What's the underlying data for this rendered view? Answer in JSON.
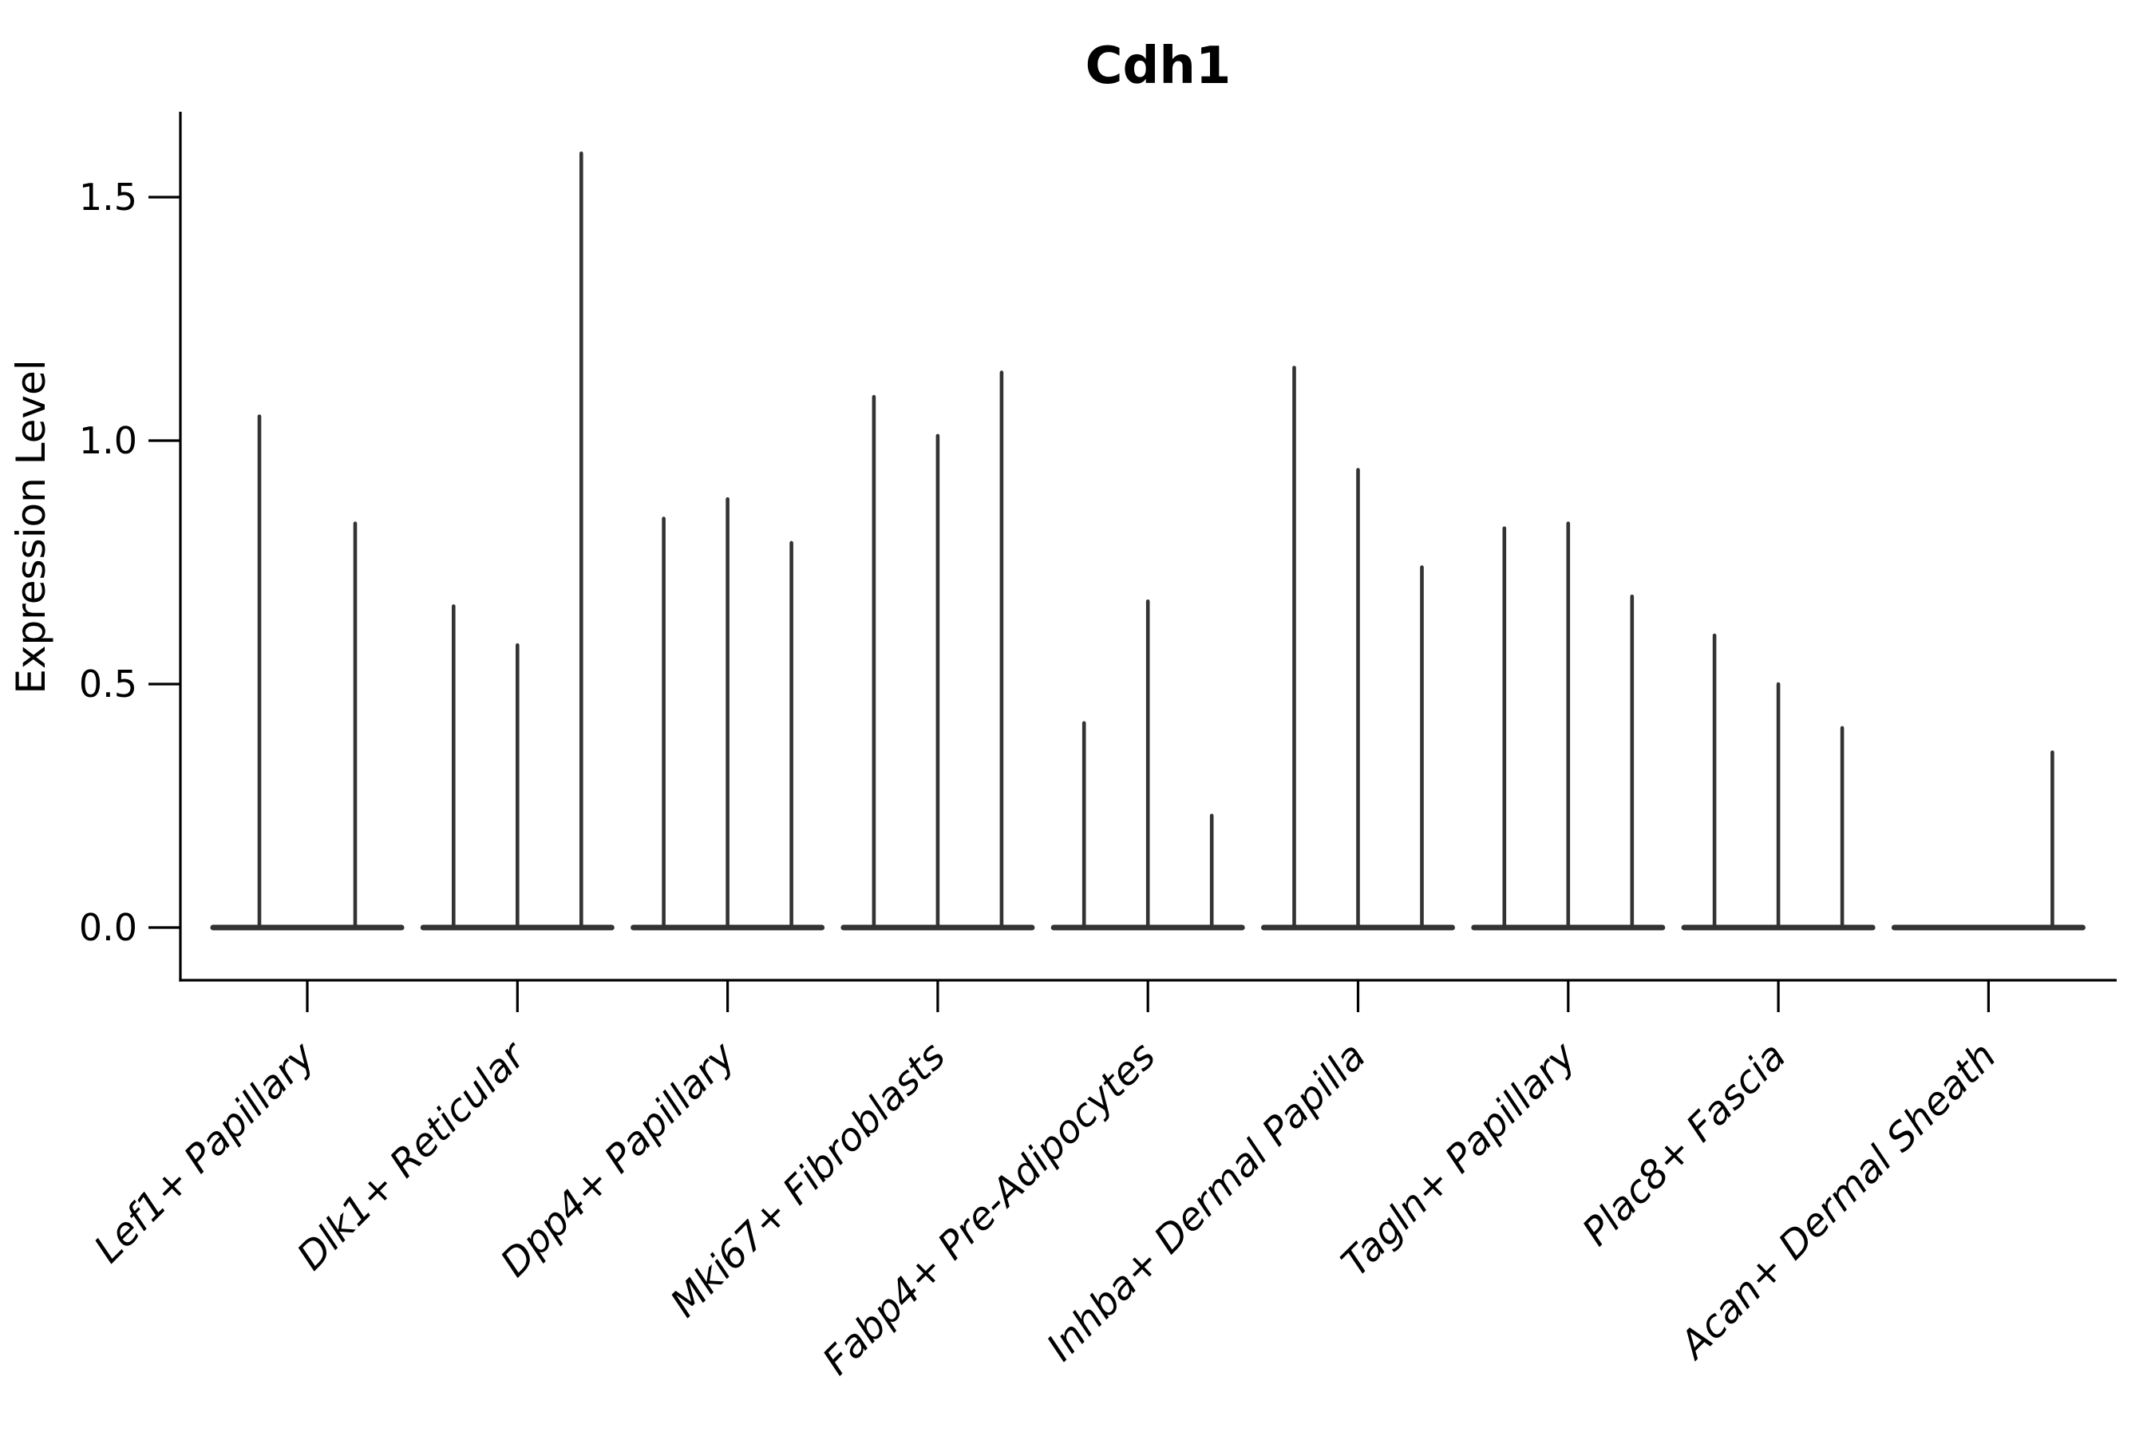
{
  "title": "Cdh1",
  "colors": {
    "background": "#ffffff",
    "axis": "#000000",
    "violin": "#333333",
    "text": "#000000"
  },
  "chart_data": {
    "type": "violin",
    "title": "Cdh1",
    "xlabel": "",
    "ylabel": "Expression Level",
    "yticks": [
      "0.0",
      "0.5",
      "1.0",
      "1.5"
    ],
    "ytick_values": [
      0.0,
      0.5,
      1.0,
      1.5
    ],
    "ylim": [
      -0.11,
      1.68
    ],
    "grid": false,
    "legend": null,
    "description": "Needle-thin violins (near-zero density bodies at 0 with thin spikes up to the max expression value). Each category slot is split into adjacent violins.",
    "categories": [
      "Lef1+ Papillary",
      "Dlk1+ Reticular",
      "Dpp4+ Papillary",
      "Mki67+ Fibroblasts",
      "Fabp4+ Pre-Adipocytes",
      "Inhba+ Dermal Papilla",
      "Tagln+ Papillary",
      "Plac8+ Fascia",
      "Acan+ Dermal Sheath"
    ],
    "violin_max_values": [
      [
        1.05,
        0.83
      ],
      [
        0.66,
        0.58,
        1.59
      ],
      [
        0.84,
        0.88,
        0.79
      ],
      [
        1.09,
        1.01,
        1.14
      ],
      [
        0.42,
        0.67,
        0.23
      ],
      [
        1.15,
        0.94,
        0.74
      ],
      [
        0.82,
        0.83,
        0.68
      ],
      [
        0.6,
        0.5,
        0.41
      ],
      [
        0.0,
        0.0,
        0.36
      ]
    ]
  }
}
